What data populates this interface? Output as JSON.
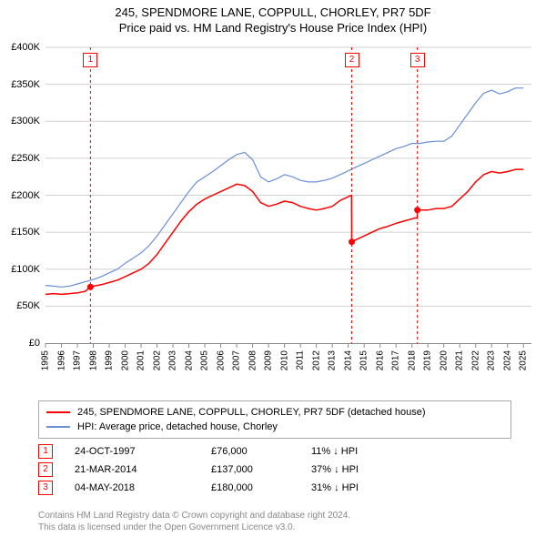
{
  "title_line1": "245, SPENDMORE LANE, COPPULL, CHORLEY, PR7 5DF",
  "title_line2": "Price paid vs. HM Land Registry's House Price Index (HPI)",
  "chart": {
    "type": "line",
    "background_color": "#ffffff",
    "grid_color": "#d0d0d0",
    "xlim": [
      1995,
      2025.5
    ],
    "ylim": [
      0,
      400000
    ],
    "ytick_step": 50000,
    "ytick_labels": [
      "£0",
      "£50K",
      "£100K",
      "£150K",
      "£200K",
      "£250K",
      "£300K",
      "£350K",
      "£400K"
    ],
    "xtick_step": 1,
    "xtick_labels": [
      "1995",
      "1996",
      "1997",
      "1998",
      "1999",
      "2000",
      "2001",
      "2002",
      "2003",
      "2004",
      "2005",
      "2006",
      "2007",
      "2008",
      "2009",
      "2010",
      "2011",
      "2012",
      "2013",
      "2014",
      "2015",
      "2016",
      "2017",
      "2018",
      "2019",
      "2020",
      "2021",
      "2022",
      "2023",
      "2024",
      "2025"
    ],
    "label_fontsize": 11,
    "axis_color": "#888888",
    "series": [
      {
        "name": "red",
        "color": "#ff0000",
        "width": 1.5,
        "data": [
          [
            1995.0,
            66000
          ],
          [
            1995.5,
            67000
          ],
          [
            1996.0,
            66000
          ],
          [
            1996.5,
            67000
          ],
          [
            1997.0,
            68000
          ],
          [
            1997.5,
            70000
          ],
          [
            1997.8,
            76000
          ],
          [
            1998.0,
            77000
          ],
          [
            1998.5,
            79000
          ],
          [
            1999.0,
            82000
          ],
          [
            1999.5,
            85000
          ],
          [
            2000.0,
            90000
          ],
          [
            2000.5,
            95000
          ],
          [
            2001.0,
            100000
          ],
          [
            2001.5,
            108000
          ],
          [
            2002.0,
            120000
          ],
          [
            2002.5,
            135000
          ],
          [
            2003.0,
            150000
          ],
          [
            2003.5,
            165000
          ],
          [
            2004.0,
            178000
          ],
          [
            2004.5,
            188000
          ],
          [
            2005.0,
            195000
          ],
          [
            2005.5,
            200000
          ],
          [
            2006.0,
            205000
          ],
          [
            2006.5,
            210000
          ],
          [
            2007.0,
            215000
          ],
          [
            2007.5,
            213000
          ],
          [
            2008.0,
            205000
          ],
          [
            2008.5,
            190000
          ],
          [
            2009.0,
            185000
          ],
          [
            2009.5,
            188000
          ],
          [
            2010.0,
            192000
          ],
          [
            2010.5,
            190000
          ],
          [
            2011.0,
            185000
          ],
          [
            2011.5,
            182000
          ],
          [
            2012.0,
            180000
          ],
          [
            2012.5,
            182000
          ],
          [
            2013.0,
            185000
          ],
          [
            2013.5,
            193000
          ],
          [
            2014.0,
            198000
          ],
          [
            2014.21,
            200000
          ],
          [
            2014.22,
            137000
          ],
          [
            2014.5,
            140000
          ],
          [
            2015.0,
            145000
          ],
          [
            2015.5,
            150000
          ],
          [
            2016.0,
            155000
          ],
          [
            2016.5,
            158000
          ],
          [
            2017.0,
            162000
          ],
          [
            2017.5,
            165000
          ],
          [
            2018.0,
            168000
          ],
          [
            2018.33,
            170000
          ],
          [
            2018.34,
            180000
          ],
          [
            2018.5,
            180000
          ],
          [
            2019.0,
            180000
          ],
          [
            2019.5,
            182000
          ],
          [
            2020.0,
            182000
          ],
          [
            2020.5,
            185000
          ],
          [
            2021.0,
            195000
          ],
          [
            2021.5,
            205000
          ],
          [
            2022.0,
            218000
          ],
          [
            2022.5,
            228000
          ],
          [
            2023.0,
            232000
          ],
          [
            2023.5,
            230000
          ],
          [
            2024.0,
            232000
          ],
          [
            2024.5,
            235000
          ],
          [
            2025.0,
            235000
          ]
        ]
      },
      {
        "name": "blue",
        "color": "#6a8fd8",
        "width": 1.2,
        "data": [
          [
            1995.0,
            78000
          ],
          [
            1995.5,
            77000
          ],
          [
            1996.0,
            76000
          ],
          [
            1996.5,
            77000
          ],
          [
            1997.0,
            80000
          ],
          [
            1997.5,
            83000
          ],
          [
            1998.0,
            86000
          ],
          [
            1998.5,
            90000
          ],
          [
            1999.0,
            95000
          ],
          [
            1999.5,
            100000
          ],
          [
            2000.0,
            108000
          ],
          [
            2000.5,
            115000
          ],
          [
            2001.0,
            122000
          ],
          [
            2001.5,
            132000
          ],
          [
            2002.0,
            145000
          ],
          [
            2002.5,
            160000
          ],
          [
            2003.0,
            175000
          ],
          [
            2003.5,
            190000
          ],
          [
            2004.0,
            205000
          ],
          [
            2004.5,
            218000
          ],
          [
            2005.0,
            225000
          ],
          [
            2005.5,
            232000
          ],
          [
            2006.0,
            240000
          ],
          [
            2006.5,
            248000
          ],
          [
            2007.0,
            255000
          ],
          [
            2007.5,
            258000
          ],
          [
            2008.0,
            248000
          ],
          [
            2008.5,
            225000
          ],
          [
            2009.0,
            218000
          ],
          [
            2009.5,
            222000
          ],
          [
            2010.0,
            228000
          ],
          [
            2010.5,
            225000
          ],
          [
            2011.0,
            220000
          ],
          [
            2011.5,
            218000
          ],
          [
            2012.0,
            218000
          ],
          [
            2012.5,
            220000
          ],
          [
            2013.0,
            223000
          ],
          [
            2013.5,
            228000
          ],
          [
            2014.0,
            233000
          ],
          [
            2014.5,
            238000
          ],
          [
            2015.0,
            243000
          ],
          [
            2015.5,
            248000
          ],
          [
            2016.0,
            253000
          ],
          [
            2016.5,
            258000
          ],
          [
            2017.0,
            263000
          ],
          [
            2017.5,
            266000
          ],
          [
            2018.0,
            270000
          ],
          [
            2018.5,
            270000
          ],
          [
            2019.0,
            272000
          ],
          [
            2019.5,
            273000
          ],
          [
            2020.0,
            273000
          ],
          [
            2020.5,
            280000
          ],
          [
            2021.0,
            295000
          ],
          [
            2021.5,
            310000
          ],
          [
            2022.0,
            325000
          ],
          [
            2022.5,
            338000
          ],
          [
            2023.0,
            342000
          ],
          [
            2023.5,
            337000
          ],
          [
            2024.0,
            340000
          ],
          [
            2024.5,
            345000
          ],
          [
            2025.0,
            345000
          ]
        ]
      }
    ],
    "markers": [
      {
        "label": "1",
        "x": 1997.82,
        "y": 76000,
        "dot_color": "#ff0000"
      },
      {
        "label": "2",
        "x": 2014.22,
        "y": 137000,
        "dot_color": "#ff0000"
      },
      {
        "label": "3",
        "x": 2018.34,
        "y": 180000,
        "dot_color": "#ff0000"
      }
    ],
    "vline_color": "#ff0000",
    "vline_dash": "3,3"
  },
  "legend": {
    "items": [
      {
        "color": "#ff0000",
        "label": "245, SPENDMORE LANE, COPPULL, CHORLEY, PR7 5DF (detached house)"
      },
      {
        "color": "#6a8fd8",
        "label": "HPI: Average price, detached house, Chorley"
      }
    ]
  },
  "events": [
    {
      "num": "1",
      "date": "24-OCT-1997",
      "price": "£76,000",
      "pct": "11% ↓ HPI"
    },
    {
      "num": "2",
      "date": "21-MAR-2014",
      "price": "£137,000",
      "pct": "37% ↓ HPI"
    },
    {
      "num": "3",
      "date": "04-MAY-2018",
      "price": "£180,000",
      "pct": "31% ↓ HPI"
    }
  ],
  "footer_line1": "Contains HM Land Registry data © Crown copyright and database right 2024.",
  "footer_line2": "This data is licensed under the Open Government Licence v3.0."
}
